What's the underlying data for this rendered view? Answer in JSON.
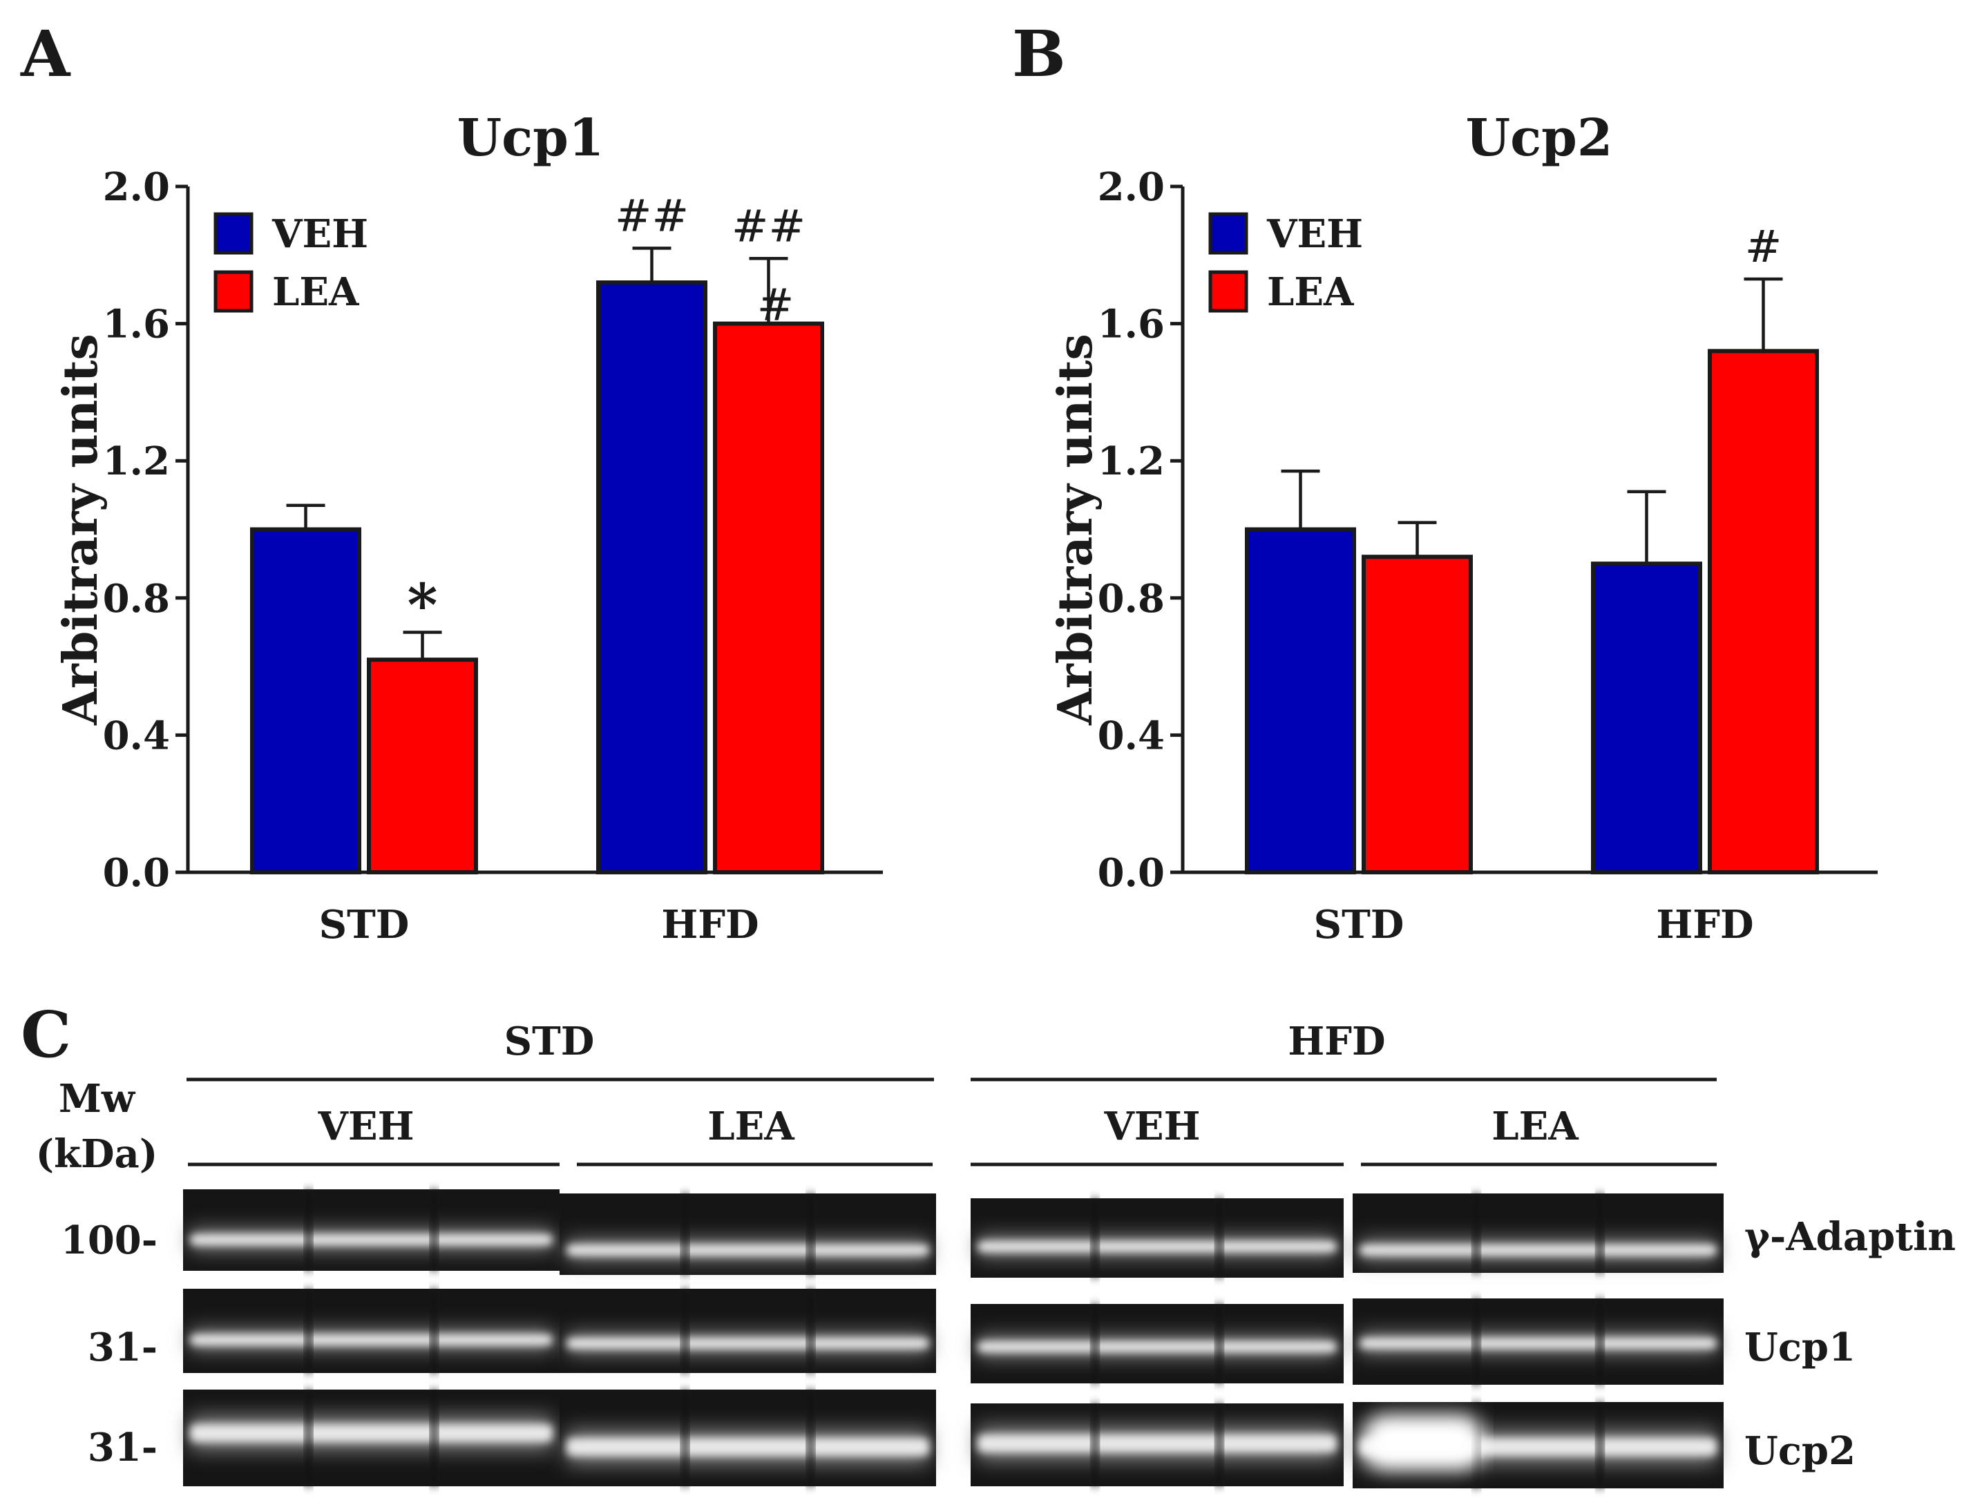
{
  "chart_data": [
    {
      "panel": "A",
      "type": "bar",
      "title": "Ucp1",
      "ylabel": "Arbitrary units",
      "xlabel": "",
      "ylim": [
        0,
        2.0
      ],
      "yticks": [
        "0.0",
        "0.4",
        "0.8",
        "1.2",
        "1.6",
        "2.0"
      ],
      "categories": [
        "STD",
        "HFD"
      ],
      "series": [
        {
          "name": "VEH",
          "color": "#0000b4",
          "values": [
            1.0,
            1.72
          ],
          "errors": [
            0.07,
            0.1
          ],
          "annotations": [
            "",
            "##"
          ]
        },
        {
          "name": "LEA",
          "color": "#ff0000",
          "values": [
            0.62,
            1.6
          ],
          "errors": [
            0.08,
            0.19
          ],
          "annotations": [
            "*",
            "##"
          ]
        }
      ],
      "extra_annotations": [
        "#"
      ],
      "legend": "top-left"
    },
    {
      "panel": "B",
      "type": "bar",
      "title": "Ucp2",
      "ylabel": "Arbitrary units",
      "xlabel": "",
      "ylim": [
        0,
        2.0
      ],
      "yticks": [
        "0.0",
        "0.4",
        "0.8",
        "1.2",
        "1.6",
        "2.0"
      ],
      "categories": [
        "STD",
        "HFD"
      ],
      "series": [
        {
          "name": "VEH",
          "color": "#0000b4",
          "values": [
            1.0,
            0.9
          ],
          "errors": [
            0.17,
            0.21
          ],
          "annotations": [
            "",
            ""
          ]
        },
        {
          "name": "LEA",
          "color": "#ff0000",
          "values": [
            0.92,
            1.52
          ],
          "errors": [
            0.1,
            0.21
          ],
          "annotations": [
            "",
            "#"
          ]
        }
      ],
      "legend": "top-left"
    }
  ],
  "blot": {
    "panel": "C",
    "mw_label_1": "Mw",
    "mw_label_2": "(kDa)",
    "groups": [
      {
        "label": "STD",
        "subgroups": [
          "VEH",
          "LEA"
        ]
      },
      {
        "label": "HFD",
        "subgroups": [
          "VEH",
          "LEA"
        ]
      }
    ],
    "rows": [
      {
        "mw": "100-",
        "protein": "γ-Adaptin"
      },
      {
        "mw": "31-",
        "protein": "Ucp1"
      },
      {
        "mw": "31-",
        "protein": "Ucp2"
      }
    ]
  }
}
